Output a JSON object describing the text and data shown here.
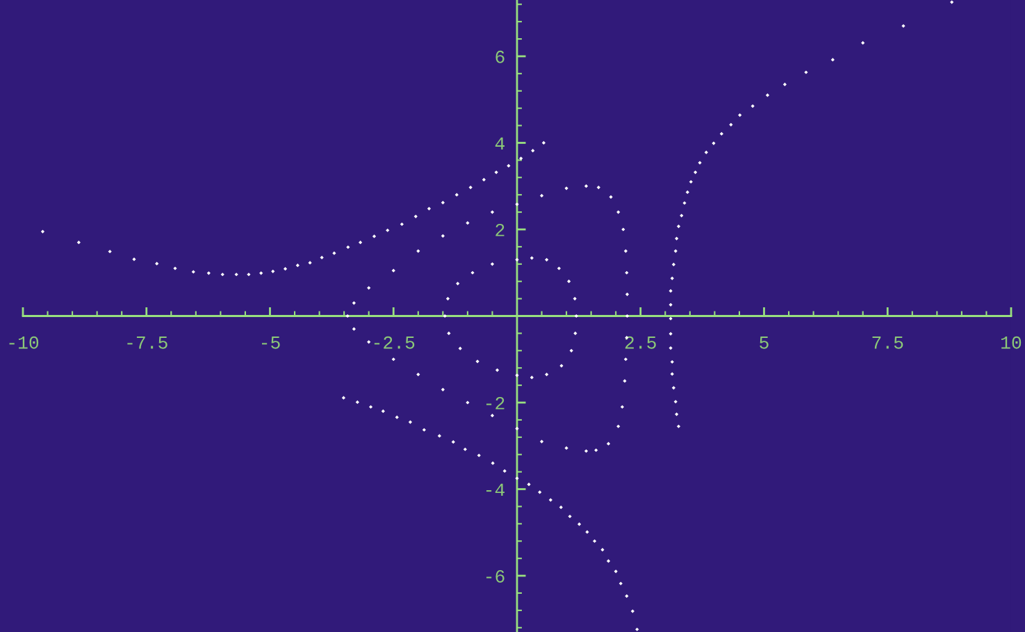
{
  "chart_data": {
    "type": "scatter",
    "marker": "diamond",
    "xlim": [
      -10,
      10
    ],
    "ylim": [
      -7.3,
      7.3
    ],
    "xticks": [
      -10,
      -7.5,
      -5,
      -2.5,
      2.5,
      5,
      7.5,
      10
    ],
    "yticks": [
      -6,
      -4,
      -2,
      2,
      4,
      6
    ],
    "series": [
      {
        "color": "#ffffff",
        "x": [
          -1.46,
          -1.4,
          -1.2,
          -0.9,
          -0.5,
          0,
          0.3,
          0.6,
          0.85,
          1.05,
          1.17,
          1.2,
          1.18,
          1.1,
          0.9,
          0.6,
          0.3,
          0,
          -0.4,
          -0.8,
          -1.15,
          -1.38
        ],
        "values": [
          0,
          0.4,
          0.75,
          1.0,
          1.2,
          1.3,
          1.34,
          1.3,
          1.1,
          0.8,
          0.4,
          0,
          -0.4,
          -0.8,
          -1.15,
          -1.35,
          -1.42,
          -1.37,
          -1.25,
          -1.05,
          -0.75,
          -0.4
        ]
      },
      {
        "color": "#ffffff",
        "x": [
          -3.43,
          -3.3,
          -3.0,
          -2.5,
          -2.0,
          -1.5,
          -1.0,
          -0.5,
          0,
          0.5,
          1.0,
          1.4,
          1.65,
          1.9,
          2.05,
          2.15,
          2.2,
          2.22,
          2.23,
          2.23,
          2.22,
          2.2,
          2.18,
          2.13,
          2.05,
          1.85,
          1.6,
          1.4,
          1.0,
          0.5,
          0,
          -0.5,
          -1.0,
          -1.5,
          -2.0,
          -2.5,
          -3.0,
          -3.3
        ],
        "values": [
          0,
          0.3,
          0.65,
          1.05,
          1.5,
          1.85,
          2.15,
          2.4,
          2.58,
          2.78,
          2.95,
          3.0,
          2.97,
          2.75,
          2.4,
          2.0,
          1.5,
          1.0,
          0.5,
          0,
          -0.5,
          -1.0,
          -1.5,
          -2.1,
          -2.55,
          -2.95,
          -3.1,
          -3.12,
          -3.05,
          -2.9,
          -2.6,
          -2.3,
          -2.0,
          -1.7,
          -1.35,
          -1.0,
          -0.6,
          -0.3
        ]
      },
      {
        "color": "#ffffff",
        "x": [
          -9.6,
          -8.87,
          -8.24,
          -7.75,
          -7.29,
          -6.92,
          -6.55,
          -6.24,
          -5.96,
          -5.68,
          -5.43,
          -5.18,
          -4.94,
          -4.69,
          -4.44,
          -4.19,
          -3.95,
          -3.7,
          -3.42,
          -3.17,
          -2.89,
          -2.62,
          -2.33,
          -2.05,
          -1.78,
          -1.5,
          -1.22,
          -0.94,
          -0.67,
          -0.42,
          -0.17,
          0.08,
          0.32,
          0.54
        ],
        "values": [
          1.95,
          1.7,
          1.49,
          1.31,
          1.21,
          1.1,
          1.02,
          0.99,
          0.96,
          0.96,
          0.96,
          0.99,
          1.03,
          1.09,
          1.17,
          1.23,
          1.35,
          1.45,
          1.59,
          1.7,
          1.84,
          1.98,
          2.12,
          2.3,
          2.48,
          2.62,
          2.8,
          2.97,
          3.15,
          3.32,
          3.47,
          3.64,
          3.82,
          4.0
        ]
      },
      {
        "color": "#ffffff",
        "x": [
          -3.51,
          -3.23,
          -2.96,
          -2.71,
          -2.43,
          -2.16,
          -1.88,
          -1.57,
          -1.29,
          -1.05,
          -0.77,
          -0.49,
          -0.25,
          0,
          0.24,
          0.46,
          0.68,
          0.89,
          1.07,
          1.26,
          1.42,
          1.57,
          1.73,
          1.85,
          2.0,
          2.1,
          2.22,
          2.34,
          2.43
        ],
        "values": [
          -1.89,
          -1.99,
          -2.1,
          -2.2,
          -2.34,
          -2.45,
          -2.63,
          -2.77,
          -2.91,
          -3.08,
          -3.22,
          -3.4,
          -3.58,
          -3.75,
          -3.89,
          -4.07,
          -4.25,
          -4.42,
          -4.63,
          -4.81,
          -4.99,
          -5.2,
          -5.4,
          -5.66,
          -5.9,
          -6.18,
          -6.47,
          -6.82,
          -7.24
        ]
      },
      {
        "color": "#ffffff",
        "x": [
          8.8,
          7.82,
          7.0,
          6.39,
          5.85,
          5.42,
          5.07,
          4.77,
          4.51,
          4.33,
          4.14,
          3.98,
          3.83,
          3.7,
          3.61,
          3.52,
          3.45,
          3.39,
          3.33,
          3.27,
          3.23,
          3.21,
          3.17,
          3.14,
          3.11,
          3.11,
          3.11,
          3.11,
          3.11,
          3.14,
          3.14,
          3.17,
          3.21,
          3.23,
          3.27
        ],
        "values": [
          7.25,
          6.7,
          6.31,
          5.92,
          5.63,
          5.35,
          5.1,
          4.85,
          4.64,
          4.42,
          4.21,
          3.99,
          3.78,
          3.54,
          3.32,
          3.1,
          2.86,
          2.61,
          2.32,
          2.07,
          1.79,
          1.5,
          1.19,
          0.87,
          0.58,
          0.26,
          -0.06,
          -0.41,
          -0.74,
          -1.06,
          -1.34,
          -1.66,
          -1.98,
          -2.27,
          -2.55
        ]
      }
    ]
  }
}
